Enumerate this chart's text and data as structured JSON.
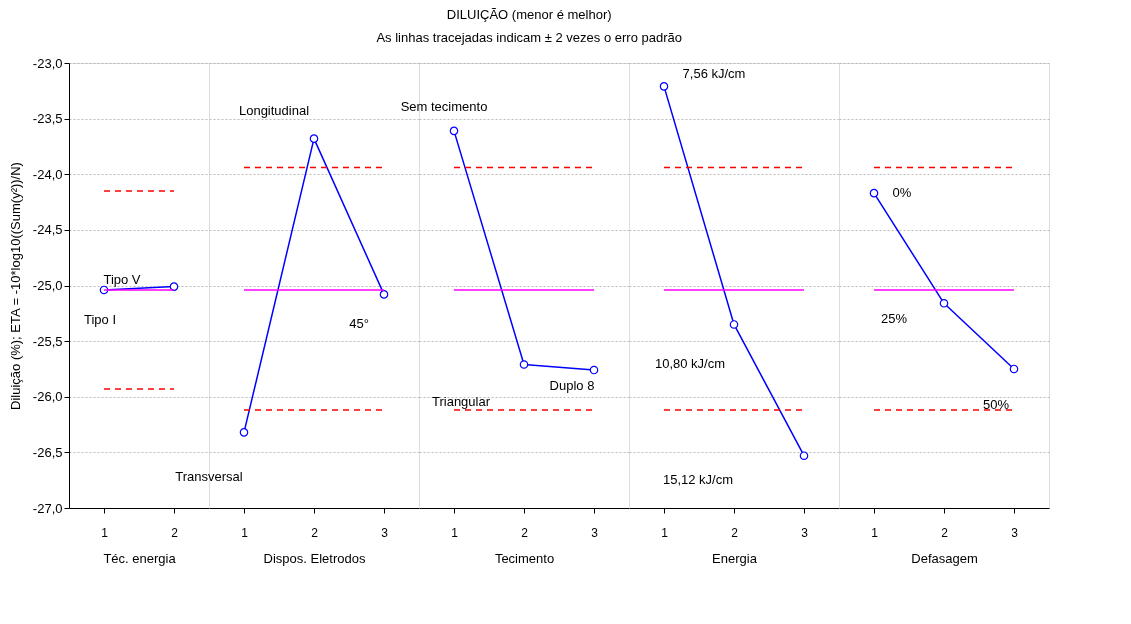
{
  "chart_data": [
    {
      "type": "line",
      "ylabel": "Diluição (%); ETA = -10*log10((Sum(y²))/N)",
      "xlabel": "Téc. energia",
      "categories": [
        "1",
        "2"
      ],
      "series": [
        {
          "color": "#0000ff",
          "values": [
            -25.04,
            -25.01
          ]
        }
      ],
      "ylim": [
        -27.0,
        -23.0
      ],
      "yticks": [
        {
          "value": -27.0,
          "label": "-27,0"
        },
        {
          "value": -26.5,
          "label": "-26,5"
        },
        {
          "value": -26.0,
          "label": "-26,0"
        },
        {
          "value": -25.5,
          "label": "-25,5"
        },
        {
          "value": -25.0,
          "label": "-25,0"
        },
        {
          "value": -24.5,
          "label": "-24,5"
        },
        {
          "value": -24.0,
          "label": "-24,0"
        },
        {
          "value": -23.5,
          "label": "-23,5"
        },
        {
          "value": -23.0,
          "label": "-23,0"
        }
      ],
      "ref_lines": [
        {
          "axis": "y",
          "value": -25.04,
          "color": "#ff00ff",
          "line_style": "solid"
        },
        {
          "axis": "y",
          "value": -24.15,
          "color": "#ff0000",
          "line_style": "dashed"
        },
        {
          "axis": "y",
          "value": -25.93,
          "color": "#ff0000",
          "line_style": "dashed"
        }
      ],
      "annotations": [
        {
          "text": "Tipo V",
          "x": "1",
          "y": -25.04
        },
        {
          "text": "Tipo I",
          "x": "1",
          "y": -25.04
        }
      ],
      "grid": "y",
      "marker": "circle",
      "line_style": "solid"
    },
    {
      "type": "line",
      "xlabel": "Dispos. Eletrodos",
      "categories": [
        "1",
        "2",
        "3"
      ],
      "series": [
        {
          "color": "#0000ff",
          "values": [
            -26.32,
            -23.68,
            -25.08
          ]
        }
      ],
      "ylim": [
        -27.0,
        -23.0
      ],
      "yticks": [
        -27.0,
        -26.5,
        -26.0,
        -25.5,
        -25.0,
        -24.5,
        -24.0,
        -23.5,
        -23.0
      ],
      "tick_labels": "x",
      "ref_lines": [
        {
          "axis": "y",
          "value": -25.04,
          "color": "#ff00ff",
          "line_style": "solid"
        },
        {
          "axis": "y",
          "value": -23.94,
          "color": "#ff0000",
          "line_style": "dashed"
        },
        {
          "axis": "y",
          "value": -26.12,
          "color": "#ff0000",
          "line_style": "dashed"
        }
      ],
      "annotations": [
        {
          "text": "Longitudinal",
          "x": "2",
          "y": -23.68
        },
        {
          "text": "Transversal",
          "x": "1",
          "y": -26.32
        },
        {
          "text": "45°",
          "x": "3",
          "y": -25.08
        }
      ],
      "grid": "y",
      "marker": "circle",
      "line_style": "solid"
    },
    {
      "type": "line",
      "title": "DILUIÇÃO (menor é melhor)",
      "subtitle": "As linhas tracejadas indicam ± 2 vezes o erro padrão",
      "xlabel": "Tecimento",
      "categories": [
        "1",
        "2",
        "3"
      ],
      "series": [
        {
          "color": "#0000ff",
          "values": [
            -23.61,
            -25.71,
            -25.76
          ]
        }
      ],
      "ylim": [
        -27.0,
        -23.0
      ],
      "yticks": [
        -27.0,
        -26.5,
        -26.0,
        -25.5,
        -25.0,
        -24.5,
        -24.0,
        -23.5,
        -23.0
      ],
      "tick_labels": "x",
      "ref_lines": [
        {
          "axis": "y",
          "value": -25.04,
          "color": "#ff00ff",
          "line_style": "solid"
        },
        {
          "axis": "y",
          "value": -23.94,
          "color": "#ff0000",
          "line_style": "dashed"
        },
        {
          "axis": "y",
          "value": -26.12,
          "color": "#ff0000",
          "line_style": "dashed"
        }
      ],
      "annotations": [
        {
          "text": "Sem tecimento",
          "x": "1",
          "y": -23.61
        },
        "Triangular",
        {
          "text": "Duplo 8",
          "x": "3",
          "y": -25.76
        }
      ],
      "grid": "y",
      "marker": "circle",
      "line_style": "solid"
    },
    {
      "type": "line",
      "xlabel": "Energia",
      "categories": [
        "1",
        "2",
        "3"
      ],
      "series": [
        {
          "color": "#0000ff",
          "values": [
            -23.21,
            -25.35,
            -26.53
          ]
        }
      ],
      "ylim": [
        -27.0,
        -23.0
      ],
      "yticks": [
        -27.0,
        -26.5,
        -26.0,
        -25.5,
        -25.0,
        -24.5,
        -24.0,
        -23.5,
        -23.0
      ],
      "tick_labels": "x",
      "ref_lines": [
        {
          "axis": "y",
          "value": -25.04,
          "color": "#ff00ff",
          "line_style": "solid"
        },
        {
          "axis": "y",
          "value": -23.94,
          "color": "#ff0000",
          "line_style": "dashed"
        },
        {
          "axis": "y",
          "value": -26.12,
          "color": "#ff0000",
          "line_style": "dashed"
        }
      ],
      "annotations": [
        {
          "text": "7,56 kJ/cm",
          "x": "1",
          "y": -23.21
        },
        {
          "text": "10,80 kJ/cm",
          "x": "2",
          "y": -25.35
        },
        "15,12 kJ/cm"
      ],
      "grid": "y",
      "marker": "circle",
      "line_style": "solid"
    },
    {
      "type": "line",
      "xlabel": "Defasagem",
      "categories": [
        "1",
        "2",
        "3"
      ],
      "series": [
        {
          "color": "#0000ff",
          "values": [
            -24.17,
            -25.16,
            -25.75
          ]
        }
      ],
      "ylim": [
        -27.0,
        -23.0
      ],
      "yticks": [
        -27.0,
        -26.5,
        -26.0,
        -25.5,
        -25.0,
        -24.5,
        -24.0,
        -23.5,
        -23.0
      ],
      "tick_labels": "x",
      "ref_lines": [
        {
          "axis": "y",
          "value": -25.04,
          "color": "#ff00ff",
          "line_style": "solid"
        },
        {
          "axis": "y",
          "value": -23.94,
          "color": "#ff0000",
          "line_style": "dashed"
        },
        {
          "axis": "y",
          "value": -26.12,
          "color": "#ff0000",
          "line_style": "dashed"
        }
      ],
      "annotations": [
        {
          "text": "0%",
          "x": "1",
          "y": -24.17
        },
        {
          "text": "25%",
          "x": "2",
          "y": -25.16
        },
        {
          "text": "50%",
          "x": "3",
          "y": -25.75
        }
      ],
      "grid": "y",
      "marker": "circle",
      "line_style": "solid"
    }
  ]
}
